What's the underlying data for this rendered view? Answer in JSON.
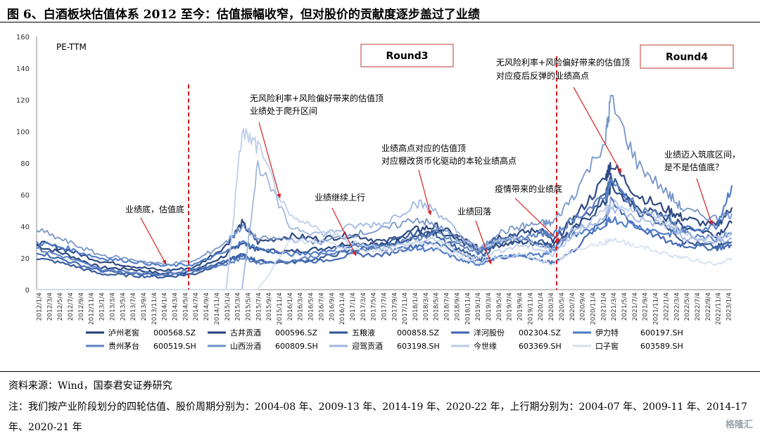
{
  "figure_title": "图 6、白酒板块估值体系 2012 至今：估值振幅收窄，但对股价的贡献度逐步盖过了业绩",
  "source": "资料来源：Wind，国泰君安证券研究",
  "note": "注：我们按产业阶段划分的四轮估值、股价周期分别为：2004-08 年、2009-13 年、2014-19 年、2020-22 年，上行期分别为：2004-07 年、2009-11 年、2014-17 年、2020-21 年",
  "watermark": "格隆汇",
  "chart_data": {
    "type": "line",
    "title": "",
    "ylabel": "PE-TTM",
    "xlabel": "",
    "ylim": [
      0,
      160
    ],
    "yticks": [
      0,
      20,
      40,
      60,
      80,
      100,
      120,
      140,
      160
    ],
    "grid": false,
    "legend_position": "bottom",
    "xtick_labels": [
      "2012/1/4",
      "2012/3/4",
      "2012/5/4",
      "2012/7/4",
      "2012/9/4",
      "2012/11/4",
      "2013/1/4",
      "2013/3/4",
      "2013/5/4",
      "2013/7/4",
      "2013/9/4",
      "2013/11/4",
      "2014/1/4",
      "2014/3/4",
      "2014/5/4",
      "2014/7/4",
      "2014/9/4",
      "2014/11/4",
      "2015/1/4",
      "2015/3/4",
      "2015/5/4",
      "2015/7/4",
      "2015/9/4",
      "2015/11/4",
      "2016/1/4",
      "2016/3/4",
      "2016/5/4",
      "2016/7/4",
      "2016/9/4",
      "2016/11/4",
      "2017/1/4",
      "2017/3/4",
      "2017/5/4",
      "2017/7/4",
      "2017/9/4",
      "2017/11/4",
      "2018/1/4",
      "2018/3/4",
      "2018/5/4",
      "2018/7/4",
      "2018/9/4",
      "2018/11/4",
      "2019/1/4",
      "2019/3/4",
      "2019/5/4",
      "2019/7/4",
      "2019/9/4",
      "2019/11/4",
      "2020/1/4",
      "2020/3/4",
      "2020/5/4",
      "2020/7/4",
      "2020/9/4",
      "2020/11/4",
      "2021/1/4",
      "2021/3/4",
      "2021/5/4",
      "2021/7/4",
      "2021/9/4",
      "2021/11/4",
      "2022/1/4",
      "2022/3/4",
      "2022/5/4",
      "2022/7/4",
      "2022/9/4",
      "2022/11/4",
      "2023/1/4"
    ],
    "x": [
      "2012/1",
      "2012/7",
      "2013/1",
      "2013/7",
      "2014/1",
      "2014/7",
      "2015/1",
      "2015/4",
      "2015/7",
      "2016/1",
      "2016/7",
      "2017/1",
      "2017/7",
      "2018/1",
      "2018/5",
      "2018/10",
      "2019/1",
      "2019/4",
      "2019/9",
      "2020/1",
      "2020/3",
      "2020/7",
      "2021/1",
      "2021/2",
      "2021/7",
      "2022/1",
      "2022/4",
      "2022/10",
      "2023/1"
    ],
    "series": [
      {
        "name": "泸州老窖 000568.SZ",
        "color": "#1f3e7a",
        "values": [
          28,
          22,
          14,
          13,
          10,
          12,
          22,
          30,
          25,
          24,
          26,
          30,
          28,
          34,
          36,
          30,
          24,
          28,
          30,
          29,
          28,
          38,
          55,
          65,
          52,
          45,
          40,
          35,
          42
        ]
      },
      {
        "name": "古井贡酒 000596.SZ",
        "color": "#243f7d",
        "values": [
          30,
          25,
          18,
          15,
          12,
          14,
          28,
          42,
          30,
          34,
          32,
          35,
          30,
          38,
          40,
          32,
          26,
          33,
          36,
          38,
          30,
          45,
          70,
          80,
          60,
          50,
          45,
          40,
          52
        ]
      },
      {
        "name": "五粮液 000858.SZ",
        "color": "#2e5496",
        "values": [
          20,
          16,
          10,
          9,
          8,
          10,
          18,
          22,
          18,
          17,
          20,
          25,
          28,
          36,
          35,
          24,
          19,
          28,
          32,
          30,
          27,
          38,
          60,
          70,
          50,
          40,
          30,
          27,
          30
        ]
      },
      {
        "name": "洋河股份 002304.SZ",
        "color": "#3b64b0",
        "values": [
          24,
          18,
          12,
          10,
          9,
          11,
          18,
          22,
          18,
          18,
          18,
          22,
          22,
          28,
          30,
          22,
          18,
          20,
          22,
          18,
          17,
          25,
          45,
          55,
          40,
          30,
          28,
          26,
          28
        ]
      },
      {
        "name": "伊力特 600197.SH",
        "color": "#4a78c7",
        "values": [
          30,
          26,
          20,
          18,
          15,
          16,
          24,
          30,
          26,
          22,
          24,
          28,
          26,
          26,
          25,
          18,
          16,
          20,
          22,
          22,
          25,
          35,
          40,
          45,
          40,
          35,
          38,
          40,
          66
        ]
      },
      {
        "name": "贵州茅台 600519.SH",
        "color": "#5a80c0",
        "values": [
          26,
          20,
          13,
          11,
          10,
          13,
          16,
          20,
          17,
          18,
          22,
          24,
          28,
          32,
          36,
          27,
          23,
          30,
          34,
          36,
          34,
          45,
          58,
          68,
          52,
          45,
          35,
          32,
          35
        ]
      },
      {
        "name": "山西汾酒 600809.SH",
        "color": "#6f90c8",
        "values": [
          38,
          30,
          22,
          19,
          16,
          18,
          30,
          40,
          32,
          32,
          30,
          35,
          38,
          45,
          40,
          30,
          24,
          35,
          40,
          42,
          42,
          60,
          95,
          120,
          80,
          60,
          50,
          45,
          48
        ]
      },
      {
        "name": "迎驾贡酒 603198.SH",
        "color": "#9db4de",
        "values": [
          0,
          0,
          0,
          0,
          0,
          0,
          0,
          0,
          80,
          40,
          35,
          40,
          42,
          55,
          50,
          32,
          26,
          30,
          33,
          28,
          26,
          38,
          46,
          52,
          45,
          40,
          32,
          30,
          32
        ]
      },
      {
        "name": "今世缘 603369.SH",
        "color": "#bccbe9",
        "values": [
          0,
          0,
          0,
          0,
          0,
          0,
          0,
          100,
          90,
          45,
          38,
          30,
          26,
          30,
          32,
          22,
          20,
          24,
          28,
          25,
          22,
          35,
          50,
          55,
          50,
          42,
          35,
          32,
          36
        ]
      },
      {
        "name": "口子窖 603589.SH",
        "color": "#d3deef",
        "values": [
          0,
          0,
          0,
          0,
          0,
          0,
          0,
          0,
          0,
          30,
          30,
          25,
          24,
          30,
          28,
          20,
          17,
          20,
          22,
          18,
          16,
          25,
          30,
          32,
          28,
          22,
          20,
          16,
          20
        ]
      }
    ],
    "annotations": [
      "业绩底，估值底",
      "无风险利率+风险偏好带来的估值顶",
      "业绩处于爬升区间",
      "业绩继续上行",
      "业绩高点对应的估值顶",
      "对应棚改货币化驱动的本轮业绩高点",
      "业绩回落",
      "疫情带来的业绩底",
      "无风险利率+风险偏好带来的估值顶",
      "对应疫后反弹的业绩高点",
      "业绩迈入筑底区间，",
      "是不是估值底？"
    ],
    "round_labels": [
      "Round3",
      "Round4"
    ],
    "legend_codes": [
      "000568.SZ",
      "000596.SZ",
      "000858.SZ",
      "002304.SZ",
      "600197.SH",
      "600519.SH",
      "600809.SH",
      "603198.SH",
      "603369.SH",
      "603589.SH"
    ],
    "legend_names": [
      "泸州老窖",
      "古井贡酒",
      "五粮液",
      "洋河股份",
      "伊力特",
      "贵州茅台",
      "山西汾酒",
      "迎驾贡酒",
      "今世缘",
      "口子窖"
    ]
  }
}
